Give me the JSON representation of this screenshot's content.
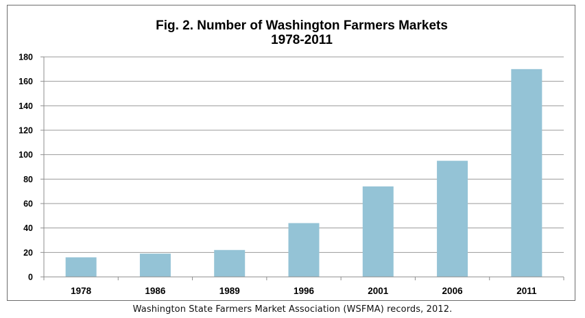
{
  "chart_data": {
    "type": "bar",
    "title": "Fig. 2. Number of Washington Farmers Markets",
    "subtitle": "1978-2011",
    "categories": [
      "1978",
      "1986",
      "1989",
      "1996",
      "2001",
      "2006",
      "2011"
    ],
    "values": [
      16,
      19,
      22,
      44,
      74,
      95,
      170
    ],
    "xlabel": "",
    "ylabel": "",
    "ylim": [
      0,
      180
    ],
    "yticks": [
      0,
      20,
      40,
      60,
      80,
      100,
      120,
      140,
      160,
      180
    ],
    "grid": true,
    "legend": "none",
    "bar_color": "#94c3d6",
    "grid_color": "#9a9a9a",
    "axis_color": "#8c8c8c"
  },
  "caption": "Washington State Farmers Market Association (WSFMA) records, 2012."
}
